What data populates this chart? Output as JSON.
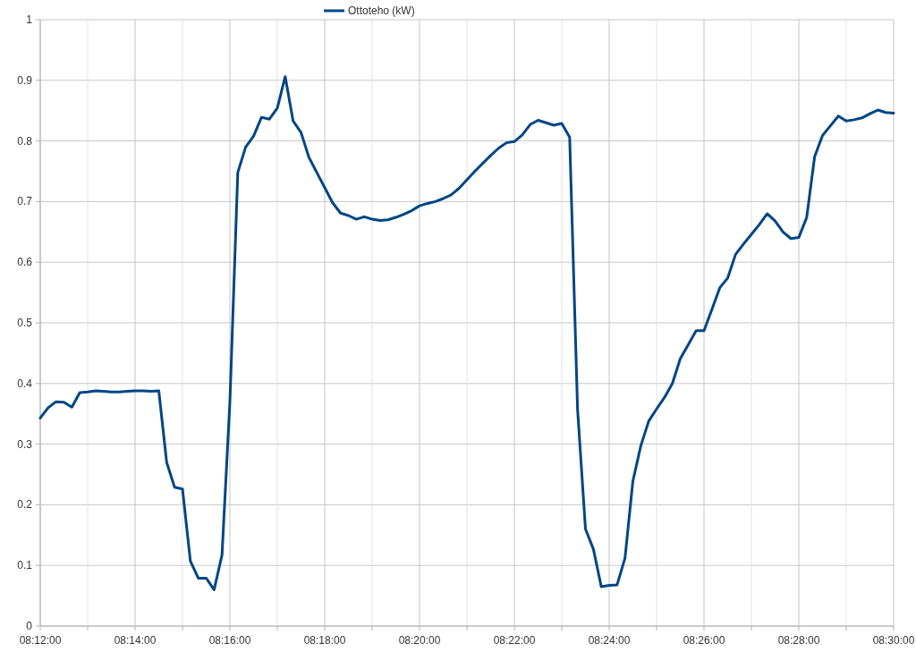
{
  "chart_data": {
    "type": "line",
    "legend": "top",
    "grid": true,
    "xlim": [
      8.2,
      8.5
    ],
    "ylim": [
      0,
      1
    ],
    "xticks": [
      {
        "value": 8.2,
        "label": "08:12:00"
      },
      {
        "value": 8.21667,
        "label": null
      },
      {
        "value": 8.23333,
        "label": "08:14:00"
      },
      {
        "value": 8.25,
        "label": null
      },
      {
        "value": 8.26667,
        "label": "08:16:00"
      },
      {
        "value": 8.28333,
        "label": null
      },
      {
        "value": 8.3,
        "label": "08:18:00"
      },
      {
        "value": 8.31667,
        "label": null
      },
      {
        "value": 8.33333,
        "label": "08:20:00"
      },
      {
        "value": 8.35,
        "label": null
      },
      {
        "value": 8.36667,
        "label": "08:22:00"
      },
      {
        "value": 8.38333,
        "label": null
      },
      {
        "value": 8.4,
        "label": "08:24:00"
      },
      {
        "value": 8.41667,
        "label": null
      },
      {
        "value": 8.43333,
        "label": "08:26:00"
      },
      {
        "value": 8.45,
        "label": null
      },
      {
        "value": 8.46667,
        "label": "08:28:00"
      },
      {
        "value": 8.48333,
        "label": null
      },
      {
        "value": 8.5,
        "label": "08:30:00"
      }
    ],
    "yticks": [
      0,
      0.1,
      0.2,
      0.3,
      0.4,
      0.5,
      0.6,
      0.7,
      0.8,
      0.9,
      1
    ],
    "x": [
      8.2,
      8.20278,
      8.20556,
      8.20833,
      8.21111,
      8.21389,
      8.21667,
      8.21944,
      8.22222,
      8.225,
      8.22778,
      8.23056,
      8.23333,
      8.23611,
      8.23889,
      8.24167,
      8.24444,
      8.24722,
      8.25,
      8.25278,
      8.25556,
      8.25833,
      8.26111,
      8.26389,
      8.26667,
      8.26944,
      8.27222,
      8.275,
      8.27778,
      8.28056,
      8.28333,
      8.28611,
      8.28889,
      8.29167,
      8.29444,
      8.29722,
      8.3,
      8.30278,
      8.30556,
      8.30833,
      8.31111,
      8.31389,
      8.31667,
      8.31944,
      8.32222,
      8.325,
      8.32778,
      8.33056,
      8.33333,
      8.33611,
      8.33889,
      8.34167,
      8.34444,
      8.34722,
      8.35,
      8.35278,
      8.35556,
      8.35833,
      8.36111,
      8.36389,
      8.36667,
      8.36944,
      8.37222,
      8.375,
      8.37778,
      8.38056,
      8.38333,
      8.38611,
      8.38889,
      8.39167,
      8.39444,
      8.39722,
      8.4,
      8.40278,
      8.40556,
      8.40833,
      8.41111,
      8.41389,
      8.41667,
      8.41944,
      8.42222,
      8.425,
      8.42778,
      8.43056,
      8.43333,
      8.43611,
      8.43889,
      8.44167,
      8.44444,
      8.44722,
      8.45,
      8.45278,
      8.45556,
      8.45833,
      8.46111,
      8.46389,
      8.46667,
      8.46944,
      8.47222,
      8.475,
      8.47778,
      8.48056,
      8.48333,
      8.48611,
      8.48889,
      8.49167,
      8.49444,
      8.49722,
      8.5
    ],
    "series": [
      {
        "name": "Ottoteho (kW)",
        "color": "#004586",
        "values": [
          0.343,
          0.36,
          0.37,
          0.369,
          0.361,
          0.385,
          0.386,
          0.388,
          0.387,
          0.386,
          0.386,
          0.387,
          0.388,
          0.388,
          0.387,
          0.388,
          0.27,
          0.229,
          0.226,
          0.107,
          0.079,
          0.079,
          0.06,
          0.117,
          0.37,
          0.748,
          0.79,
          0.808,
          0.839,
          0.836,
          0.854,
          0.906,
          0.833,
          0.814,
          0.773,
          0.748,
          0.723,
          0.698,
          0.681,
          0.677,
          0.671,
          0.675,
          0.671,
          0.669,
          0.67,
          0.674,
          0.679,
          0.685,
          0.693,
          0.697,
          0.7,
          0.705,
          0.711,
          0.722,
          0.736,
          0.75,
          0.763,
          0.776,
          0.788,
          0.797,
          0.799,
          0.81,
          0.827,
          0.834,
          0.83,
          0.826,
          0.829,
          0.806,
          0.357,
          0.16,
          0.127,
          0.065,
          0.067,
          0.068,
          0.112,
          0.239,
          0.297,
          0.338,
          0.358,
          0.377,
          0.4,
          0.441,
          0.464,
          0.487,
          0.487,
          0.522,
          0.558,
          0.574,
          0.613,
          0.63,
          0.646,
          0.662,
          0.68,
          0.668,
          0.65,
          0.639,
          0.641,
          0.674,
          0.774,
          0.809,
          0.825,
          0.841,
          0.833,
          0.835,
          0.838,
          0.845,
          0.851,
          0.847,
          0.846
        ]
      }
    ]
  }
}
